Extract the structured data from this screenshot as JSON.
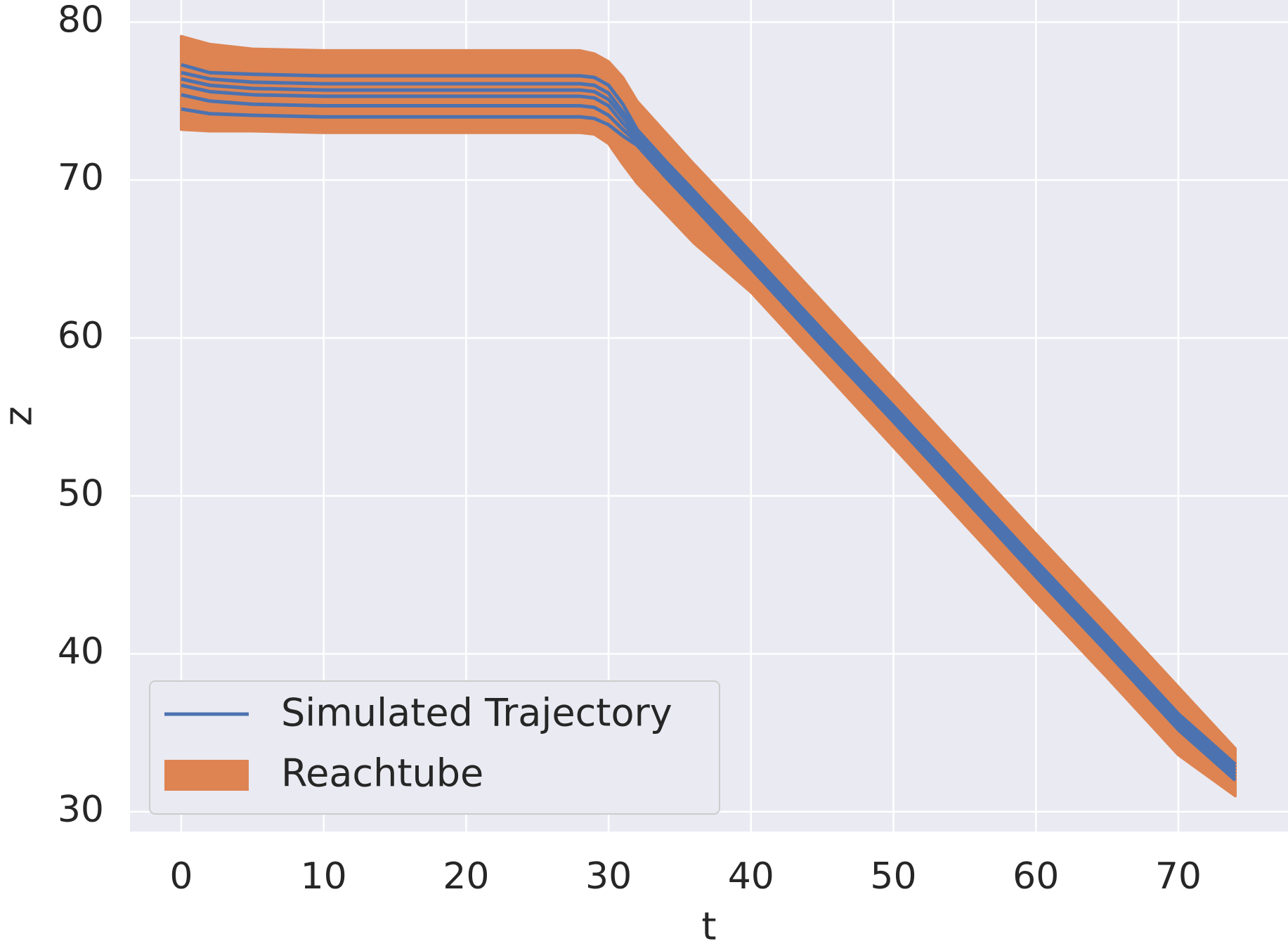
{
  "chart_data": {
    "type": "line",
    "xlabel": "t",
    "ylabel": "z",
    "x": [
      0,
      2,
      5,
      10,
      15,
      20,
      25,
      28,
      29,
      30,
      31,
      32,
      34,
      36,
      40,
      45,
      50,
      55,
      60,
      65,
      70,
      74
    ],
    "trajectories": {
      "name": "Simulated Trajectory",
      "color": "#4c72b0",
      "lines": [
        [
          77.3,
          76.8,
          76.7,
          76.6,
          76.6,
          76.6,
          76.6,
          76.6,
          76.5,
          76.0,
          74.8,
          73.2,
          71.2,
          69.3,
          65.4,
          60.5,
          55.7,
          50.8,
          45.9,
          41.1,
          36.2,
          33.0
        ],
        [
          76.8,
          76.4,
          76.2,
          76.1,
          76.1,
          76.1,
          76.1,
          76.1,
          76.0,
          75.5,
          74.3,
          73.0,
          71.0,
          69.1,
          65.2,
          60.3,
          55.5,
          50.6,
          45.7,
          40.9,
          36.0,
          32.8
        ],
        [
          76.4,
          76.0,
          75.8,
          75.7,
          75.7,
          75.7,
          75.7,
          75.7,
          75.6,
          75.1,
          74.0,
          72.8,
          70.8,
          68.9,
          65.0,
          60.1,
          55.3,
          50.4,
          45.5,
          40.7,
          35.8,
          32.6
        ],
        [
          76.0,
          75.6,
          75.4,
          75.3,
          75.3,
          75.3,
          75.3,
          75.3,
          75.2,
          74.7,
          73.6,
          72.6,
          70.6,
          68.7,
          64.8,
          59.9,
          55.1,
          50.2,
          45.3,
          40.5,
          35.6,
          32.4
        ],
        [
          75.4,
          75.0,
          74.8,
          74.7,
          74.7,
          74.7,
          74.7,
          74.7,
          74.6,
          74.1,
          73.2,
          72.4,
          70.4,
          68.5,
          64.6,
          59.7,
          54.9,
          50.0,
          45.1,
          40.3,
          35.4,
          32.2
        ],
        [
          74.5,
          74.2,
          74.1,
          74.0,
          74.0,
          74.0,
          74.0,
          74.0,
          73.9,
          73.5,
          72.8,
          72.2,
          70.2,
          68.3,
          64.4,
          59.5,
          54.7,
          49.8,
          44.9,
          40.1,
          35.2,
          32.0
        ]
      ]
    },
    "reachtube": {
      "name": "Reachtube",
      "color": "#dd8452",
      "upper": [
        79.1,
        78.6,
        78.3,
        78.2,
        78.2,
        78.2,
        78.2,
        78.2,
        78.0,
        77.5,
        76.5,
        75.0,
        73.0,
        71.0,
        67.2,
        62.3,
        57.4,
        52.5,
        47.6,
        42.8,
        37.9,
        34.0
      ],
      "lower": [
        73.2,
        73.1,
        73.1,
        73.0,
        73.0,
        73.0,
        73.0,
        73.0,
        72.9,
        72.3,
        71.0,
        69.8,
        67.9,
        66.0,
        62.9,
        58.0,
        53.1,
        48.2,
        43.3,
        38.5,
        33.6,
        31.0
      ]
    },
    "xlim": [
      -3.6,
      77.7
    ],
    "ylim": [
      28.75,
      81.4
    ],
    "xticks": [
      0,
      10,
      20,
      30,
      40,
      50,
      60,
      70
    ],
    "yticks": [
      30,
      40,
      50,
      60,
      70,
      80
    ],
    "grid": true,
    "legend": "lower left"
  }
}
